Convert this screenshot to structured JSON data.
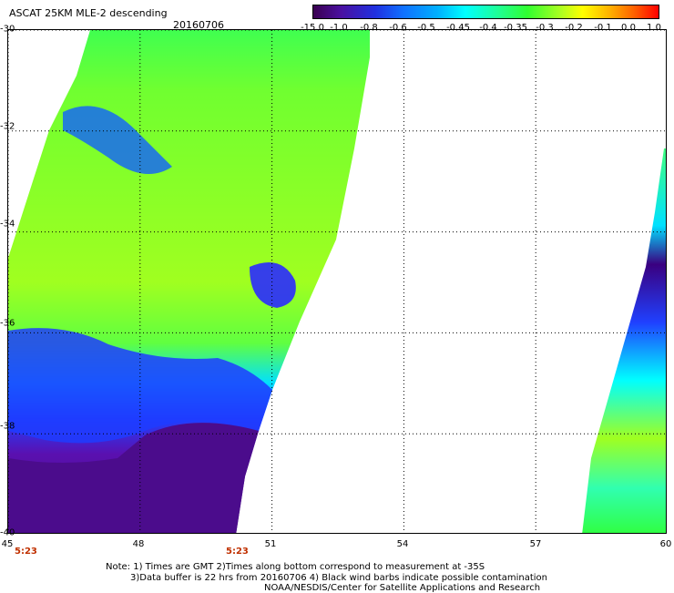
{
  "title": "ASCAT 25KM MLE-2 descending",
  "date": "20160706",
  "colorbar": {
    "labels": [
      "-15.0",
      "-1.0",
      "-0.8",
      "-0.6",
      "-0.5",
      "-0.45",
      "-0.4",
      "-0.35",
      "-0.3",
      "-0.2",
      "-0.1",
      "0.0",
      "1.0"
    ],
    "colors": [
      "#3a0050",
      "#4a10a0",
      "#2030e0",
      "#1070ff",
      "#00b0ff",
      "#00ffff",
      "#20ff90",
      "#30ff30",
      "#b0ff20",
      "#ffff00",
      "#ffb000",
      "#ff6000",
      "#ff0000"
    ]
  },
  "map": {
    "lat_labels": [
      "-30",
      "-32",
      "-34",
      "-36",
      "-38",
      "-40"
    ],
    "lon_labels": [
      "45",
      "48",
      "51",
      "54",
      "57",
      "60"
    ],
    "lat_range": [
      -40,
      -30
    ],
    "lon_range": [
      45,
      60
    ],
    "grid": true
  },
  "times": [
    "5:23",
    "5:23"
  ],
  "notes": [
    "Note: 1) Times are GMT 2)Times along bottom correspond to measurement at -35S",
    "3)Data buffer is 22 hrs from 20160706 4) Black wind barbs indicate possible contamination",
    "NOAA/NESDIS/Center for Satellite Applications and Research"
  ]
}
